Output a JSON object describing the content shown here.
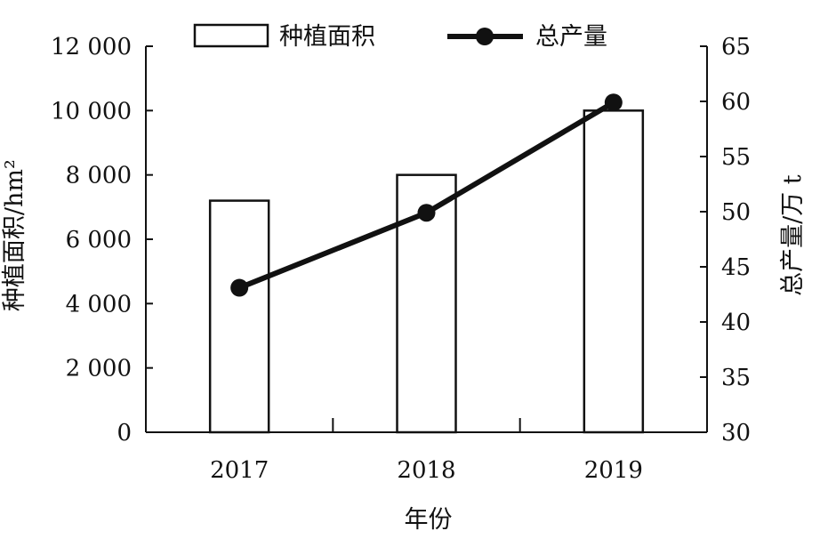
{
  "chart_data": {
    "type": "bar",
    "categories": [
      "2017",
      "2018",
      "2019"
    ],
    "series": [
      {
        "name": "种植面积",
        "type": "bar",
        "axis": "left",
        "values": [
          7200,
          8000,
          10000
        ]
      },
      {
        "name": "总产量",
        "type": "line",
        "axis": "right",
        "values": [
          43.1,
          49.9,
          59.9
        ]
      }
    ],
    "xlabel": "年份",
    "ylabel_left": "种植面积/hm²",
    "ylabel_right": "总产量/万 t",
    "ylim_left": [
      0,
      12000
    ],
    "ylim_right": [
      30,
      65
    ],
    "yticks_left": [
      "0",
      "2 000",
      "4 000",
      "6 000",
      "8 000",
      "10 000",
      "12 000"
    ],
    "yticks_right": [
      "30",
      "35",
      "40",
      "45",
      "50",
      "55",
      "60",
      "65"
    ],
    "grid": false,
    "legend_position": "top"
  }
}
